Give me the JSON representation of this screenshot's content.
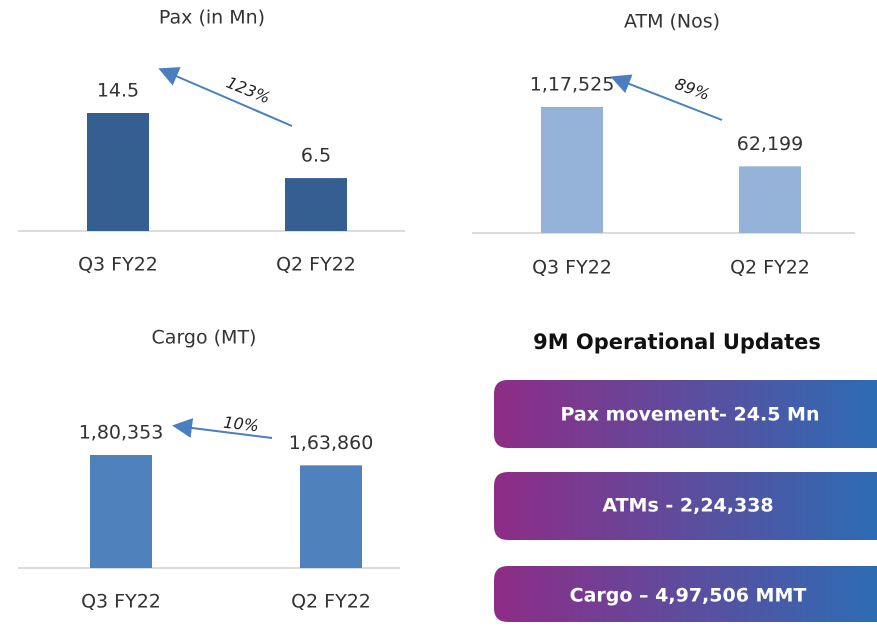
{
  "chart_data": [
    {
      "type": "bar",
      "title": "Pax (in Mn)",
      "categories": [
        "Q3 FY22",
        "Q2 FY22"
      ],
      "values": [
        14.5,
        6.5
      ],
      "color": "#345f90",
      "annotation": "123%"
    },
    {
      "type": "bar",
      "title": "ATM (Nos)",
      "categories": [
        "Q3 FY22",
        "Q2 FY22"
      ],
      "values": [
        117525,
        62199
      ],
      "value_labels": [
        "1,17,525",
        "62,199"
      ],
      "color": "#95b3d8",
      "annotation": "89%"
    },
    {
      "type": "bar",
      "title": "Cargo (MT)",
      "categories": [
        "Q3 FY22",
        "Q2 FY22"
      ],
      "values": [
        180353,
        163860
      ],
      "value_labels": [
        "1,80,353",
        "1,63,860"
      ],
      "color": "#4f81bd",
      "annotation": "10%"
    }
  ],
  "panel": {
    "title": "9M Operational Updates",
    "items": [
      "Pax movement- 24.5 Mn",
      "ATMs - 2,24,338",
      "Cargo – 4,97,506 MMT"
    ]
  }
}
